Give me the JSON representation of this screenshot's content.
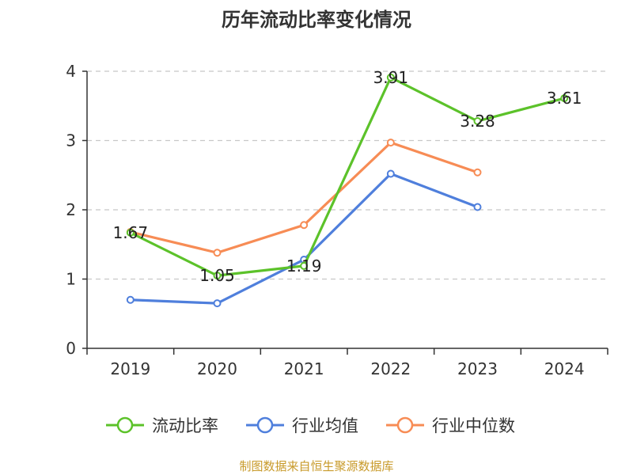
{
  "chart_data": {
    "type": "line",
    "title": "历年流动比率变化情况",
    "categories": [
      "2019",
      "2020",
      "2021",
      "2022",
      "2023",
      "2024"
    ],
    "ylim": [
      0,
      4
    ],
    "yticks": [
      0,
      1,
      2,
      3,
      4
    ],
    "ytick_labels": [
      "0",
      "1",
      "2",
      "3",
      "4"
    ],
    "grid": true,
    "legend_position": "bottom",
    "series": [
      {
        "name": "流动比率",
        "color": "#5cc22a",
        "values": [
          1.67,
          1.05,
          1.19,
          3.91,
          3.28,
          3.61
        ],
        "labels": [
          "1.67",
          "1.05",
          "1.19",
          "3.91",
          "3.28",
          "3.61"
        ]
      },
      {
        "name": "行业均值",
        "color": "#4f7fdc",
        "values": [
          0.7,
          0.65,
          1.28,
          2.52,
          2.04,
          null
        ]
      },
      {
        "name": "行业中位数",
        "color": "#f78c55",
        "values": [
          1.68,
          1.38,
          1.78,
          2.97,
          2.54,
          null
        ]
      }
    ],
    "source_note": "制图数据来自恒生聚源数据库",
    "source_color": "#c89a2a"
  }
}
